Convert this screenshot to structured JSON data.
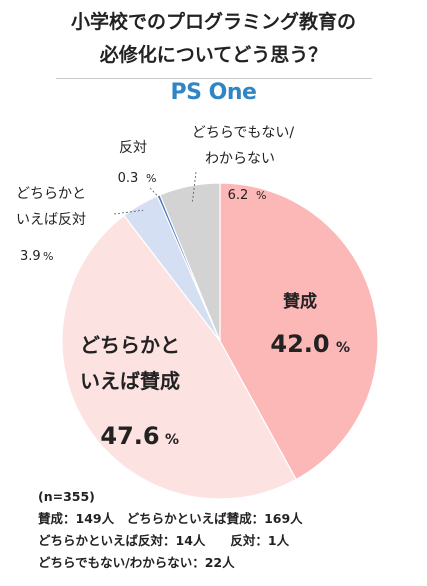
{
  "title": {
    "line1": "小学校でのプログラミング教育の",
    "line2": "必修化についてどう思う？"
  },
  "brand": {
    "logo_text": "PS One",
    "color": "#2f86c6"
  },
  "chart_data": {
    "type": "pie",
    "start_angle_deg": 0,
    "direction": "clockwise",
    "slices": [
      {
        "label": "賛成",
        "value": 42.0,
        "display": "42.0",
        "unit": "%",
        "color": "#fcb7b7"
      },
      {
        "label_line1": "どちらかと",
        "label_line2": "いえば賛成",
        "value": 47.6,
        "display": "47.6",
        "unit": "%",
        "color": "#fde2e2"
      },
      {
        "label_line1": "どちらかと",
        "label_line2": "いえば反対",
        "value": 3.9,
        "display": "3.9",
        "unit": "%",
        "color": "#d5dff3"
      },
      {
        "label": "反対",
        "value": 0.3,
        "display": "0.3",
        "unit": "%",
        "color": "#4f79c3"
      },
      {
        "label_line1": "どちらでもない/",
        "label_line2": "わからない",
        "value": 6.2,
        "display": "6.2",
        "unit": "%",
        "color": "#d3d3d3"
      }
    ]
  },
  "footer": {
    "sample": "(n=355)",
    "line1": "賛成：149人　どちらかといえば賛成：169人",
    "line2": "どちらかといえば反対：14人　　反対：1人",
    "line3": "どちらでもない/わからない：22人"
  }
}
